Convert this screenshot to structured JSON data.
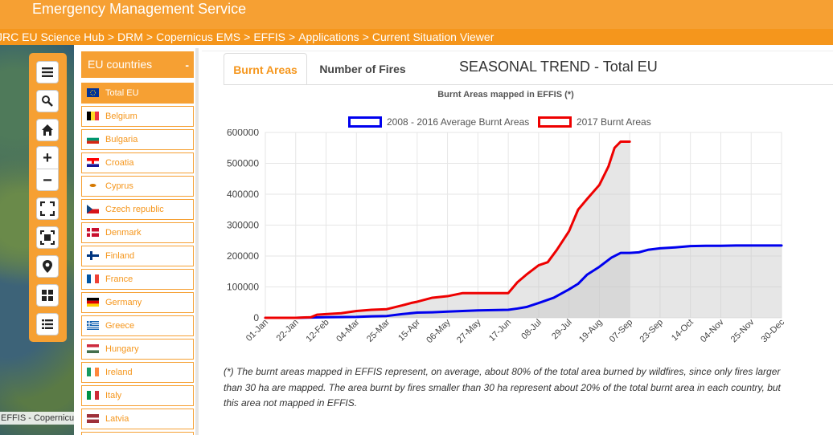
{
  "header": {
    "title": "Emergency Management Service"
  },
  "breadcrumb": [
    "JRC EU Science Hub",
    "DRM",
    "Copernicus EMS",
    "EFFIS",
    "Applications",
    "Current Situation Viewer"
  ],
  "map": {
    "attribution": "EFFIS - Copernicus",
    "toolbar": {
      "menu_icon": "menu-icon",
      "search_icon": "search-icon",
      "home_icon": "home-icon",
      "zoom_in": "+",
      "zoom_out": "−",
      "fullscreen_icon": "fullscreen-icon",
      "fit_icon": "zoom-extent-icon",
      "location_icon": "location-pin-icon",
      "grid_icon": "grid-icon",
      "list_icon": "list-icon"
    }
  },
  "country_panel": {
    "title": "EU countries",
    "collapse_label": "-",
    "items": [
      {
        "label": "Total EU",
        "flag": "eu",
        "active": true
      },
      {
        "label": "Belgium",
        "flag": "be",
        "active": false
      },
      {
        "label": "Bulgaria",
        "flag": "bg",
        "active": false
      },
      {
        "label": "Croatia",
        "flag": "hr",
        "active": false
      },
      {
        "label": "Cyprus",
        "flag": "cy",
        "active": false
      },
      {
        "label": "Czech republic",
        "flag": "cz",
        "active": false
      },
      {
        "label": "Denmark",
        "flag": "dk",
        "active": false
      },
      {
        "label": "Finland",
        "flag": "fi",
        "active": false
      },
      {
        "label": "France",
        "flag": "fr",
        "active": false
      },
      {
        "label": "Germany",
        "flag": "de",
        "active": false
      },
      {
        "label": "Greece",
        "flag": "gr",
        "active": false
      },
      {
        "label": "Hungary",
        "flag": "hu",
        "active": false
      },
      {
        "label": "Ireland",
        "flag": "ie",
        "active": false
      },
      {
        "label": "Italy",
        "flag": "it",
        "active": false
      },
      {
        "label": "Latvia",
        "flag": "lv",
        "active": false
      },
      {
        "label": "",
        "flag": "",
        "active": false
      }
    ]
  },
  "tabs": [
    {
      "label": "Burnt Areas",
      "active": true
    },
    {
      "label": "Number of Fires",
      "active": false
    }
  ],
  "page_title": "SEASONAL TREND - Total EU",
  "colors": {
    "brand": "#f6a033",
    "series_avg": "#0000ee",
    "series_2017": "#ee0000"
  },
  "chart_data": {
    "type": "area",
    "title": "Burnt Areas mapped in EFFIS (*)",
    "xlabel": "",
    "ylabel": "",
    "ylim": [
      0,
      600000
    ],
    "yticks": [
      0,
      100000,
      200000,
      300000,
      400000,
      500000,
      600000
    ],
    "xticks": [
      "01-Jan",
      "22-Jan",
      "12-Feb",
      "04-Mar",
      "25-Mar",
      "15-Apr",
      "06-May",
      "27-May",
      "17-Jun",
      "08-Jul",
      "29-Jul",
      "19-Aug",
      "07-Sep",
      "23-Sep",
      "14-Oct",
      "04-Nov",
      "25-Nov",
      "30-Dec"
    ],
    "legend_position": "top",
    "grid": true,
    "series": [
      {
        "name": "2008 - 2016 Average Burnt Areas",
        "color": "#0000ee",
        "points": [
          [
            0,
            0
          ],
          [
            1,
            0
          ],
          [
            2,
            2000
          ],
          [
            3,
            3000
          ],
          [
            3.5,
            5000
          ],
          [
            4,
            6000
          ],
          [
            4.5,
            12000
          ],
          [
            5,
            17000
          ],
          [
            5.5,
            18000
          ],
          [
            6,
            20000
          ],
          [
            6.5,
            22000
          ],
          [
            7,
            24000
          ],
          [
            7.5,
            25000
          ],
          [
            8,
            26000
          ],
          [
            8.3,
            30000
          ],
          [
            8.6,
            35000
          ],
          [
            9,
            48000
          ],
          [
            9.5,
            65000
          ],
          [
            10,
            92000
          ],
          [
            10.3,
            110000
          ],
          [
            10.6,
            140000
          ],
          [
            11,
            165000
          ],
          [
            11.4,
            195000
          ],
          [
            11.7,
            210000
          ],
          [
            12,
            210000
          ],
          [
            12.3,
            212000
          ],
          [
            12.6,
            220000
          ],
          [
            13,
            225000
          ],
          [
            13.5,
            228000
          ],
          [
            14,
            232000
          ],
          [
            14.5,
            233000
          ],
          [
            15,
            233000
          ],
          [
            15.5,
            234000
          ],
          [
            16,
            234000
          ],
          [
            17,
            234000
          ]
        ]
      },
      {
        "name": "2017 Burnt Areas",
        "color": "#ee0000",
        "points": [
          [
            0,
            0
          ],
          [
            1,
            0
          ],
          [
            1.5,
            2000
          ],
          [
            1.7,
            10000
          ],
          [
            2,
            12000
          ],
          [
            2.5,
            15000
          ],
          [
            3,
            22000
          ],
          [
            3.5,
            26000
          ],
          [
            4,
            28000
          ],
          [
            4.5,
            40000
          ],
          [
            4.8,
            48000
          ],
          [
            5,
            52000
          ],
          [
            5.5,
            65000
          ],
          [
            6,
            70000
          ],
          [
            6.5,
            80000
          ],
          [
            7,
            80000
          ],
          [
            7.5,
            80000
          ],
          [
            8,
            80000
          ],
          [
            8.3,
            115000
          ],
          [
            8.6,
            140000
          ],
          [
            9,
            170000
          ],
          [
            9.3,
            180000
          ],
          [
            9.6,
            220000
          ],
          [
            10,
            280000
          ],
          [
            10.3,
            350000
          ],
          [
            10.6,
            385000
          ],
          [
            11,
            430000
          ],
          [
            11.3,
            490000
          ],
          [
            11.5,
            550000
          ],
          [
            11.7,
            570000
          ],
          [
            12,
            570000
          ]
        ]
      }
    ]
  },
  "footnote": "(*) The burnt areas mapped in EFFIS represent, on average, about 80% of the total area burned by wildfires, since only fires larger than 30 ha are mapped. The area burnt by fires smaller than 30 ha represent about 20% of the total burnt area in each country, but this area not mapped in EFFIS."
}
